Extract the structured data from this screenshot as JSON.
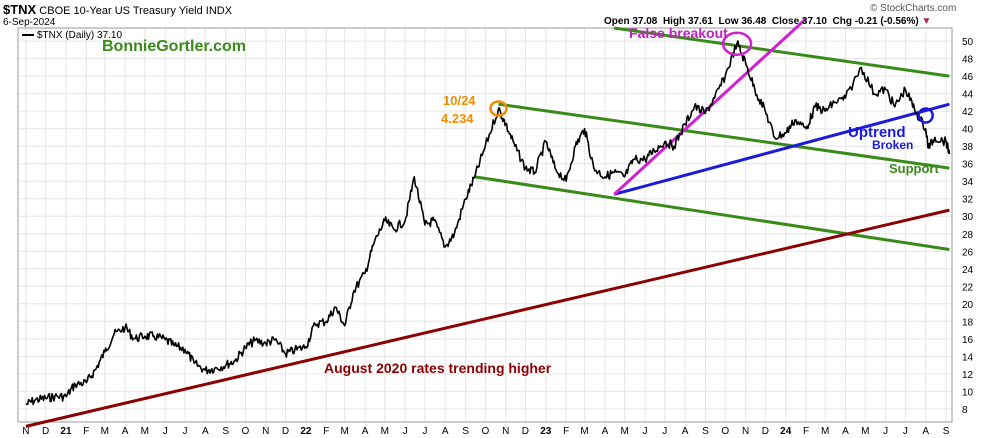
{
  "header": {
    "symbol": "$TNX",
    "description": "CBOE 10-Year US Treasury Yield INDX",
    "date": "6-Sep-2024",
    "copyright": "© StockCharts.com",
    "legend": "$TNX (Daily) 37.10",
    "ohlc": {
      "open_label": "Open",
      "open": "37.08",
      "high_label": "High",
      "high": "37.61",
      "low_label": "Low",
      "low": "36.48",
      "close_label": "Close",
      "close": "37.10",
      "chg_label": "Chg",
      "chg": "-0.21 (-0.56%)"
    }
  },
  "watermark": "BonnieGortler.com",
  "annotations": {
    "high_date": "10/24",
    "high_value": "4.234",
    "false_breakout": "False breakout",
    "uptrend": "Uptrend",
    "broken": "Broken",
    "support": "Support",
    "rates": "August 2020 rates trending higher"
  },
  "colors": {
    "price": "#000000",
    "channel": "#3a8a1a",
    "uptrend": "#1a1adc",
    "false_breakout": "#d020d0",
    "rates_trend": "#8b0000",
    "high_marker": "#f08c00",
    "grid": "#e6e6e6"
  },
  "chart_data": {
    "type": "line",
    "title": "$TNX CBOE 10-Year US Treasury Yield INDX",
    "series": [
      {
        "name": "$TNX (Daily)",
        "points": [
          [
            "2020-11-01",
            8.5
          ],
          [
            "2020-11-15",
            9.0
          ],
          [
            "2020-12-01",
            9.2
          ],
          [
            "2020-12-15",
            9.4
          ],
          [
            "2021-01-01",
            9.4
          ],
          [
            "2021-01-15",
            10.8
          ],
          [
            "2021-02-01",
            11.0
          ],
          [
            "2021-02-15",
            12.5
          ],
          [
            "2021-03-01",
            14.5
          ],
          [
            "2021-03-15",
            16.5
          ],
          [
            "2021-04-01",
            17.3
          ],
          [
            "2021-04-15",
            16.0
          ],
          [
            "2021-05-01",
            16.3
          ],
          [
            "2021-05-15",
            16.3
          ],
          [
            "2021-06-01",
            15.9
          ],
          [
            "2021-06-15",
            15.2
          ],
          [
            "2021-07-01",
            14.8
          ],
          [
            "2021-07-15",
            13.2
          ],
          [
            "2021-08-01",
            12.4
          ],
          [
            "2021-08-15",
            12.6
          ],
          [
            "2021-09-01",
            13.0
          ],
          [
            "2021-09-15",
            13.5
          ],
          [
            "2021-10-01",
            15.0
          ],
          [
            "2021-10-15",
            15.8
          ],
          [
            "2021-11-01",
            15.5
          ],
          [
            "2021-11-15",
            15.9
          ],
          [
            "2021-12-01",
            14.3
          ],
          [
            "2021-12-15",
            14.7
          ],
          [
            "2022-01-01",
            15.1
          ],
          [
            "2022-01-15",
            17.7
          ],
          [
            "2022-02-01",
            18.0
          ],
          [
            "2022-02-15",
            19.6
          ],
          [
            "2022-03-01",
            17.5
          ],
          [
            "2022-03-15",
            21.5
          ],
          [
            "2022-04-01",
            23.5
          ],
          [
            "2022-04-15",
            27.0
          ],
          [
            "2022-05-01",
            29.5
          ],
          [
            "2022-05-15",
            28.5
          ],
          [
            "2022-06-01",
            29.5
          ],
          [
            "2022-06-15",
            34.5
          ],
          [
            "2022-07-01",
            29.0
          ],
          [
            "2022-07-15",
            29.5
          ],
          [
            "2022-08-01",
            26.5
          ],
          [
            "2022-08-15",
            28.0
          ],
          [
            "2022-09-01",
            32.0
          ],
          [
            "2022-09-15",
            34.5
          ],
          [
            "2022-10-01",
            38.0
          ],
          [
            "2022-10-21",
            42.3
          ],
          [
            "2022-11-01",
            40.5
          ],
          [
            "2022-11-15",
            38.0
          ],
          [
            "2022-12-01",
            35.5
          ],
          [
            "2022-12-15",
            35.0
          ],
          [
            "2023-01-01",
            38.5
          ],
          [
            "2023-01-15",
            35.5
          ],
          [
            "2023-02-01",
            34.0
          ],
          [
            "2023-02-15",
            38.0
          ],
          [
            "2023-03-01",
            40.0
          ],
          [
            "2023-03-15",
            35.5
          ],
          [
            "2023-04-01",
            34.5
          ],
          [
            "2023-04-15",
            35.0
          ],
          [
            "2023-05-01",
            34.5
          ],
          [
            "2023-05-15",
            36.5
          ],
          [
            "2023-06-01",
            36.5
          ],
          [
            "2023-06-15",
            37.5
          ],
          [
            "2023-07-01",
            38.5
          ],
          [
            "2023-07-15",
            38.0
          ],
          [
            "2023-08-01",
            40.5
          ],
          [
            "2023-08-15",
            42.5
          ],
          [
            "2023-09-01",
            41.8
          ],
          [
            "2023-09-15",
            43.5
          ],
          [
            "2023-10-01",
            46.0
          ],
          [
            "2023-10-19",
            49.8
          ],
          [
            "2023-11-01",
            47.5
          ],
          [
            "2023-11-15",
            44.5
          ],
          [
            "2023-12-01",
            42.0
          ],
          [
            "2023-12-15",
            39.0
          ],
          [
            "2024-01-01",
            39.5
          ],
          [
            "2024-01-15",
            41.0
          ],
          [
            "2024-02-01",
            40.0
          ],
          [
            "2024-02-15",
            42.5
          ],
          [
            "2024-03-01",
            42.0
          ],
          [
            "2024-03-15",
            43.0
          ],
          [
            "2024-04-01",
            43.5
          ],
          [
            "2024-04-25",
            47.0
          ],
          [
            "2024-05-15",
            44.0
          ],
          [
            "2024-06-01",
            44.5
          ],
          [
            "2024-06-15",
            42.5
          ],
          [
            "2024-07-01",
            44.5
          ],
          [
            "2024-07-15",
            42.2
          ],
          [
            "2024-08-01",
            40.0
          ],
          [
            "2024-08-05",
            37.8
          ],
          [
            "2024-08-15",
            39.0
          ],
          [
            "2024-09-01",
            38.5
          ],
          [
            "2024-09-06",
            37.1
          ]
        ]
      }
    ],
    "trendlines": [
      {
        "name": "channel-upper-1",
        "from": [
          "2023-04-15",
          51.5
        ],
        "to": [
          "2024-09-06",
          46.0
        ]
      },
      {
        "name": "channel-upper-2",
        "from": [
          "2022-10-21",
          42.8
        ],
        "to": [
          "2024-09-06",
          35.5
        ]
      },
      {
        "name": "channel-lower",
        "from": [
          "2022-09-15",
          34.5
        ],
        "to": [
          "2024-09-06",
          26.2
        ]
      },
      {
        "name": "uptrend",
        "from": [
          "2023-04-15",
          32.5
        ],
        "to": [
          "2024-09-06",
          42.8
        ]
      },
      {
        "name": "false-breakout-line",
        "from": [
          "2023-04-15",
          32.5
        ],
        "to": [
          "2024-01-31",
          52.5
        ]
      },
      {
        "name": "rates-trend",
        "from": [
          "2020-11-01",
          6.0
        ],
        "to": [
          "2024-09-06",
          30.7
        ]
      }
    ],
    "markers": [
      {
        "name": "high-2022",
        "at": [
          "2022-10-21",
          42.3
        ]
      },
      {
        "name": "false-breakout-peak",
        "at": [
          "2023-10-19",
          49.7
        ]
      },
      {
        "name": "uptrend-break",
        "at": [
          "2024-08-01",
          41.5
        ]
      }
    ],
    "yticks": [
      8,
      10,
      12,
      14,
      16,
      18,
      20,
      22,
      24,
      26,
      28,
      30,
      32,
      34,
      36,
      38,
      40,
      42,
      44,
      46,
      48,
      50
    ],
    "xticks": [
      "N",
      "D",
      "21",
      "F",
      "M",
      "A",
      "M",
      "J",
      "J",
      "A",
      "S",
      "O",
      "N",
      "D",
      "22",
      "F",
      "M",
      "A",
      "M",
      "J",
      "J",
      "A",
      "S",
      "O",
      "N",
      "D",
      "23",
      "F",
      "M",
      "A",
      "M",
      "J",
      "J",
      "A",
      "S",
      "O",
      "N",
      "D",
      "24",
      "F",
      "M",
      "A",
      "M",
      "J",
      "J",
      "A",
      "S"
    ],
    "xrange": [
      "2020-10-20",
      "2024-09-10"
    ],
    "ylim": [
      6.5,
      51.5
    ],
    "grid": true
  }
}
